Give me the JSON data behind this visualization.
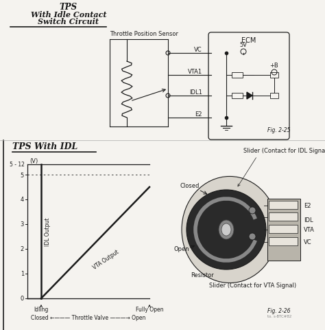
{
  "title_top": "TPS",
  "subtitle1": "With Idle Contact",
  "subtitle2": "Switch Circuit",
  "section2_title": "TPS With IDL",
  "fig_label1": "Fig. 2-25",
  "fig_label2": "Fig. 2-26",
  "bg_color": "#f5f3ef",
  "text_color": "#1a1a1a",
  "graph_idl_label": "IDL Output",
  "graph_vta_label": "VTA Output",
  "x_label_bottom": "Closed ←——— Throttle Valve ———→ Open",
  "x_tick1": "Idling",
  "x_tick2": "Fully Open",
  "circuit_labels": [
    "VC",
    "VTA1",
    "IDL1",
    "E2"
  ],
  "ecm_label": "ECM",
  "ecm_5v": "5V",
  "ecm_plusB": "+B",
  "tps_label": "Throttle Position Sensor",
  "slider_idl_label": "Slider (Contact for IDL Signal)",
  "slider_vta_label": "Slider (Contact for VTA Signal)",
  "closed_label": "Closed",
  "open_label": "Open",
  "resistor_label": "Resistor",
  "e2_label": "E2",
  "idl_label": "IDL",
  "vta_label": "VTA",
  "vc_label": "VC",
  "connector_labels": [
    "E2",
    "IDL",
    "VTA",
    "VC"
  ]
}
